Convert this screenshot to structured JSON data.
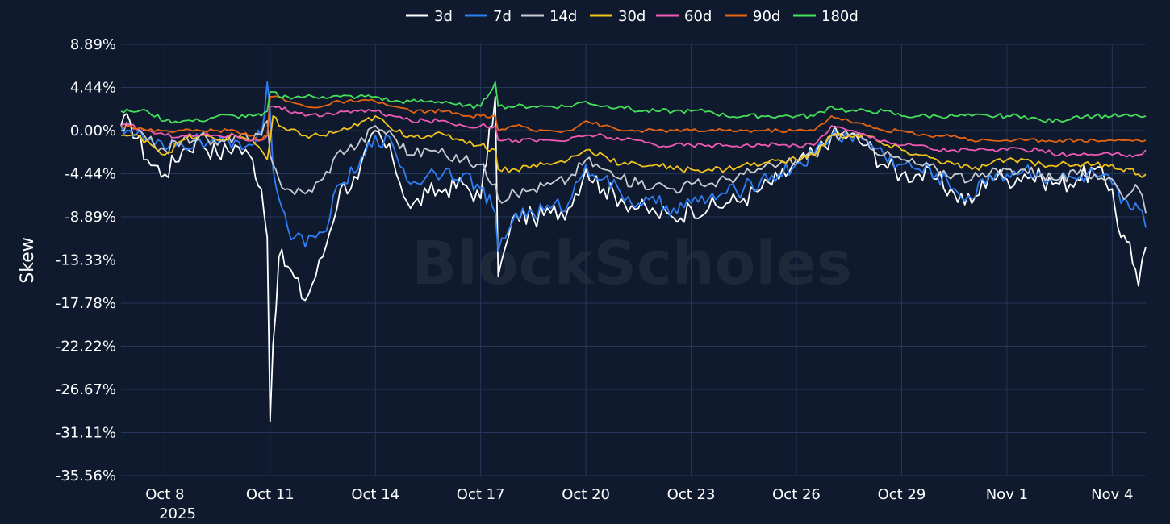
{
  "chart_data": {
    "type": "line",
    "title": "",
    "xlabel": "",
    "ylabel": "Skew",
    "watermark": "BlockScholes",
    "background": "#0f1a2e",
    "grid": true,
    "grid_color": "#24375a",
    "legend_position": "top-center",
    "ylim": [
      -35.56,
      8.89
    ],
    "y_ticks": [
      8.89,
      4.44,
      0.0,
      -4.44,
      -8.89,
      -13.33,
      -17.78,
      -22.22,
      -26.67,
      -31.11,
      -35.56
    ],
    "y_tick_labels": [
      "8.89%",
      "4.44%",
      "0.00%",
      "-4.44%",
      "-8.89%",
      "-13.33%",
      "-17.78%",
      "-22.22%",
      "-26.67%",
      "-31.11%",
      "-35.56%"
    ],
    "xlim": [
      "2025-10-06T18:00",
      "2025-11-04T23:00"
    ],
    "x_ticks": [
      "2025-10-08",
      "2025-10-11",
      "2025-10-14",
      "2025-10-17",
      "2025-10-20",
      "2025-10-23",
      "2025-10-26",
      "2025-10-29",
      "2025-11-01",
      "2025-11-04"
    ],
    "x_tick_labels": [
      "Oct 8",
      "Oct 11",
      "Oct 14",
      "Oct 17",
      "Oct 20",
      "Oct 23",
      "Oct 26",
      "Oct 29",
      "Nov 1",
      "Nov 4"
    ],
    "x_year_label": "2025",
    "x": [
      "2025-10-06T18:00",
      "2025-10-07T00:00",
      "2025-10-07T12:00",
      "2025-10-08T00:00",
      "2025-10-08T12:00",
      "2025-10-09T00:00",
      "2025-10-09T12:00",
      "2025-10-10T00:00",
      "2025-10-10T12:00",
      "2025-10-10T18:00",
      "2025-10-10T22:00",
      "2025-10-11T00:00",
      "2025-10-11T02:00",
      "2025-10-11T06:00",
      "2025-10-11T12:00",
      "2025-10-12T00:00",
      "2025-10-12T12:00",
      "2025-10-13T00:00",
      "2025-10-13T12:00",
      "2025-10-14T00:00",
      "2025-10-14T12:00",
      "2025-10-15T00:00",
      "2025-10-15T12:00",
      "2025-10-16T00:00",
      "2025-10-16T12:00",
      "2025-10-17T00:00",
      "2025-10-17T10:00",
      "2025-10-17T12:00",
      "2025-10-18T00:00",
      "2025-10-18T12:00",
      "2025-10-19T00:00",
      "2025-10-19T12:00",
      "2025-10-20T00:00",
      "2025-10-20T12:00",
      "2025-10-21T00:00",
      "2025-10-21T12:00",
      "2025-10-22T00:00",
      "2025-10-22T12:00",
      "2025-10-23T00:00",
      "2025-10-23T12:00",
      "2025-10-24T00:00",
      "2025-10-24T12:00",
      "2025-10-25T00:00",
      "2025-10-25T12:00",
      "2025-10-26T00:00",
      "2025-10-26T12:00",
      "2025-10-27T00:00",
      "2025-10-27T12:00",
      "2025-10-28T00:00",
      "2025-10-28T12:00",
      "2025-10-29T00:00",
      "2025-10-29T12:00",
      "2025-10-30T00:00",
      "2025-10-30T12:00",
      "2025-10-31T00:00",
      "2025-10-31T12:00",
      "2025-11-01T00:00",
      "2025-11-01T12:00",
      "2025-11-02T00:00",
      "2025-11-02T12:00",
      "2025-11-03T00:00",
      "2025-11-03T12:00",
      "2025-11-04T00:00",
      "2025-11-04T06:00",
      "2025-11-04T12:00",
      "2025-11-04T18:00",
      "2025-11-04T23:00"
    ],
    "series": [
      {
        "name": "3d",
        "color": "#ffffff",
        "values": [
          0.5,
          1.0,
          -3.0,
          -4.5,
          -2.0,
          -1.0,
          -2.5,
          -1.5,
          -3.0,
          -6.0,
          -11.0,
          -30.0,
          -22.0,
          -13.0,
          -14.0,
          -17.5,
          -13.0,
          -6.0,
          -5.0,
          0.0,
          -3.0,
          -8.0,
          -6.5,
          -6.0,
          -5.5,
          -7.0,
          3.5,
          -15.0,
          -8.5,
          -9.0,
          -8.5,
          -8.0,
          -4.0,
          -6.0,
          -7.0,
          -8.0,
          -8.5,
          -9.0,
          -8.0,
          -8.0,
          -7.5,
          -7.0,
          -6.0,
          -5.0,
          -3.5,
          -2.5,
          -0.5,
          -0.5,
          -1.5,
          -3.5,
          -4.5,
          -4.5,
          -5.0,
          -6.5,
          -7.5,
          -4.5,
          -5.0,
          -4.5,
          -5.0,
          -5.5,
          -5.0,
          -4.0,
          -6.0,
          -11.0,
          -11.5,
          -16.0,
          -12.0
        ]
      },
      {
        "name": "7d",
        "color": "#2f7ef4",
        "values": [
          0.5,
          0.0,
          -1.0,
          -2.0,
          -1.5,
          -1.0,
          -1.5,
          -1.0,
          -1.5,
          -0.5,
          5.0,
          2.0,
          -4.0,
          -7.0,
          -10.0,
          -12.0,
          -10.5,
          -5.5,
          -4.0,
          -0.5,
          -1.5,
          -5.5,
          -4.5,
          -4.0,
          -4.5,
          -6.0,
          -8.5,
          -12.5,
          -8.5,
          -8.5,
          -8.0,
          -7.5,
          -3.5,
          -5.0,
          -6.5,
          -7.5,
          -7.5,
          -8.0,
          -7.5,
          -7.0,
          -6.5,
          -6.0,
          -5.0,
          -4.5,
          -3.5,
          -2.5,
          -0.5,
          -0.5,
          -1.0,
          -2.5,
          -3.5,
          -4.0,
          -4.5,
          -6.0,
          -7.0,
          -4.5,
          -4.5,
          -4.0,
          -4.5,
          -5.0,
          -5.0,
          -4.5,
          -5.5,
          -7.5,
          -8.0,
          -8.0,
          -10.0
        ]
      },
      {
        "name": "14d",
        "color": "#c8cbd2",
        "values": [
          0.0,
          0.5,
          -1.0,
          -2.0,
          -1.0,
          -0.5,
          -1.5,
          -0.5,
          -1.0,
          -0.5,
          1.0,
          -2.5,
          -3.5,
          -5.0,
          -6.0,
          -6.5,
          -5.0,
          -2.0,
          -1.5,
          0.5,
          -0.5,
          -2.5,
          -2.0,
          -2.5,
          -3.0,
          -3.5,
          -5.5,
          -7.0,
          -6.5,
          -6.0,
          -5.5,
          -5.0,
          -3.0,
          -4.0,
          -5.0,
          -5.5,
          -5.5,
          -6.0,
          -5.5,
          -5.5,
          -5.0,
          -4.5,
          -4.0,
          -3.5,
          -3.0,
          -2.5,
          -0.5,
          -0.5,
          -1.0,
          -2.5,
          -3.0,
          -3.5,
          -4.0,
          -4.5,
          -5.0,
          -4.5,
          -4.0,
          -4.0,
          -4.5,
          -5.0,
          -4.5,
          -4.5,
          -5.0,
          -6.5,
          -6.5,
          -6.0,
          -8.5
        ]
      },
      {
        "name": "30d",
        "color": "#f2c318",
        "values": [
          -0.5,
          -0.5,
          -1.0,
          -2.5,
          -1.0,
          -0.5,
          -1.0,
          -0.5,
          -1.0,
          -2.0,
          -3.0,
          -1.0,
          1.5,
          0.5,
          0.0,
          -0.5,
          -0.5,
          0.0,
          0.5,
          1.5,
          0.0,
          -0.5,
          -0.5,
          -0.5,
          -1.0,
          -1.5,
          -2.0,
          -4.0,
          -4.0,
          -3.5,
          -3.5,
          -3.0,
          -2.0,
          -2.5,
          -3.5,
          -3.5,
          -3.5,
          -4.0,
          -4.0,
          -4.0,
          -4.0,
          -3.5,
          -3.5,
          -3.0,
          -3.0,
          -2.5,
          -0.5,
          -0.5,
          -0.5,
          -1.5,
          -2.0,
          -2.5,
          -3.0,
          -3.5,
          -4.0,
          -3.5,
          -3.0,
          -3.0,
          -3.5,
          -3.5,
          -3.5,
          -3.5,
          -3.5,
          -4.0,
          -4.0,
          -4.5,
          -4.5
        ]
      },
      {
        "name": "60d",
        "color": "#f05ab4",
        "values": [
          0.5,
          0.5,
          0.0,
          -0.5,
          -0.5,
          -0.5,
          -0.5,
          -0.5,
          -1.0,
          -1.0,
          -0.5,
          2.5,
          2.5,
          2.5,
          2.0,
          1.5,
          1.5,
          2.0,
          2.0,
          2.0,
          1.5,
          1.0,
          1.0,
          1.0,
          0.5,
          0.5,
          0.5,
          -1.0,
          -1.0,
          -1.0,
          -1.0,
          -1.0,
          -0.5,
          -0.5,
          -1.0,
          -1.0,
          -1.5,
          -1.5,
          -1.5,
          -1.5,
          -1.5,
          -1.5,
          -1.5,
          -1.5,
          -1.5,
          -1.5,
          0.5,
          0.0,
          -0.5,
          -1.0,
          -1.5,
          -1.5,
          -2.0,
          -2.0,
          -2.0,
          -2.0,
          -2.0,
          -2.0,
          -2.0,
          -2.5,
          -2.5,
          -2.5,
          -2.5,
          -2.5,
          -2.5,
          -2.5,
          -2.0
        ]
      },
      {
        "name": "90d",
        "color": "#e6630f",
        "values": [
          0.5,
          0.5,
          0.0,
          0.0,
          0.0,
          0.0,
          0.0,
          0.0,
          -0.5,
          -1.0,
          -0.5,
          3.5,
          3.5,
          3.5,
          3.0,
          2.5,
          2.5,
          3.0,
          3.0,
          3.0,
          2.5,
          2.0,
          2.0,
          2.0,
          1.5,
          1.5,
          1.5,
          0.0,
          0.5,
          0.0,
          0.0,
          0.0,
          1.0,
          0.5,
          0.0,
          0.0,
          0.0,
          0.0,
          0.0,
          0.0,
          0.0,
          0.0,
          0.0,
          0.0,
          0.0,
          0.0,
          1.5,
          1.0,
          0.5,
          0.0,
          0.0,
          -0.5,
          -0.5,
          -0.5,
          -1.0,
          -1.0,
          -1.0,
          -1.0,
          -1.0,
          -1.0,
          -1.0,
          -1.0,
          -1.0,
          -1.0,
          -1.0,
          -1.0,
          -1.0
        ]
      },
      {
        "name": "180d",
        "color": "#44e05a",
        "values": [
          2.0,
          2.0,
          2.0,
          1.0,
          1.0,
          1.0,
          1.5,
          1.5,
          1.5,
          1.5,
          2.0,
          4.0,
          4.0,
          3.5,
          3.5,
          3.5,
          3.5,
          3.5,
          3.5,
          3.5,
          3.0,
          3.0,
          3.0,
          3.0,
          2.5,
          2.5,
          5.0,
          2.5,
          2.5,
          2.5,
          2.5,
          2.5,
          3.0,
          2.5,
          2.5,
          2.0,
          2.0,
          2.0,
          2.0,
          2.0,
          1.5,
          1.5,
          1.5,
          1.5,
          1.5,
          1.5,
          2.5,
          2.0,
          2.0,
          2.0,
          1.5,
          1.5,
          1.5,
          1.5,
          1.5,
          1.5,
          1.5,
          1.5,
          1.0,
          1.0,
          1.5,
          1.5,
          1.5,
          1.5,
          1.5,
          1.5,
          1.5
        ]
      }
    ]
  }
}
